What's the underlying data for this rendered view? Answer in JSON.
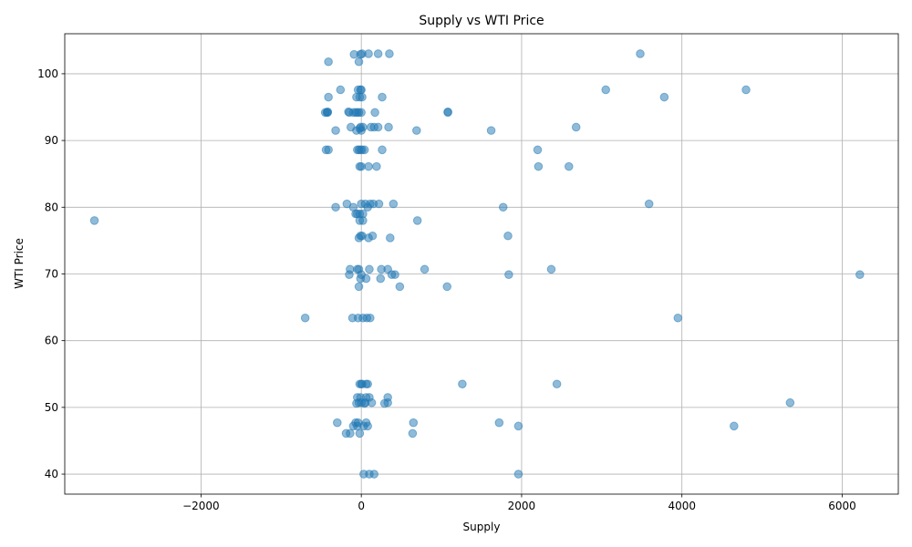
{
  "chart_data": {
    "type": "scatter",
    "title": "Supply vs WTI Price",
    "xlabel": "Supply",
    "ylabel": "WTI Price",
    "xlim": [
      -3700,
      6700
    ],
    "ylim": [
      37,
      106
    ],
    "xticks": [
      -2000,
      0,
      2000,
      4000,
      6000
    ],
    "xtick_labels": [
      "−2000",
      "0",
      "2000",
      "4000",
      "6000"
    ],
    "yticks": [
      40,
      50,
      60,
      70,
      80,
      90,
      100
    ],
    "ytick_labels": [
      "40",
      "50",
      "60",
      "70",
      "80",
      "90",
      "100"
    ],
    "grid": true,
    "legend": "none",
    "marker_color": "#1f77b4",
    "marker_alpha": 0.5,
    "points": [
      [
        -3330,
        78
      ],
      [
        -700,
        63.4
      ],
      [
        6220,
        69.9
      ],
      [
        5350,
        50.7
      ],
      [
        4650,
        47.2
      ],
      [
        4800,
        97.6
      ],
      [
        3780,
        96.5
      ],
      [
        3480,
        103
      ],
      [
        3050,
        97.6
      ],
      [
        3950,
        63.4
      ],
      [
        3590,
        80.5
      ],
      [
        2680,
        92
      ],
      [
        2590,
        86.1
      ],
      [
        2210,
        86.1
      ],
      [
        2200,
        88.6
      ],
      [
        2440,
        53.5
      ],
      [
        2370,
        70.7
      ],
      [
        1960,
        47.2
      ],
      [
        1960,
        40
      ],
      [
        1840,
        69.9
      ],
      [
        1830,
        75.7
      ],
      [
        1770,
        80
      ],
      [
        1720,
        47.7
      ],
      [
        1620,
        91.5
      ],
      [
        1080,
        94.2
      ],
      [
        1080,
        94.3
      ],
      [
        1070,
        68.1
      ],
      [
        1260,
        53.5
      ],
      [
        790,
        70.7
      ],
      [
        700,
        78
      ],
      [
        690,
        91.5
      ],
      [
        650,
        47.7
      ],
      [
        640,
        46.1
      ],
      [
        480,
        68.1
      ],
      [
        420,
        69.9
      ],
      [
        400,
        80.5
      ],
      [
        380,
        69.9
      ],
      [
        360,
        75.4
      ],
      [
        350,
        103
      ],
      [
        340,
        92
      ],
      [
        330,
        51.5
      ],
      [
        330,
        70.7
      ],
      [
        330,
        50.7
      ],
      [
        290,
        50.6
      ],
      [
        260,
        96.5
      ],
      [
        260,
        88.6
      ],
      [
        250,
        70.7
      ],
      [
        240,
        69.3
      ],
      [
        220,
        80.5
      ],
      [
        210,
        103
      ],
      [
        210,
        92
      ],
      [
        190,
        86.1
      ],
      [
        170,
        94.2
      ],
      [
        160,
        92
      ],
      [
        160,
        40
      ],
      [
        150,
        80.5
      ],
      [
        140,
        75.7
      ],
      [
        130,
        50.7
      ],
      [
        120,
        92
      ],
      [
        110,
        80.5
      ],
      [
        110,
        63.4
      ],
      [
        100,
        40
      ],
      [
        100,
        51.5
      ],
      [
        100,
        70.7
      ],
      [
        90,
        103
      ],
      [
        90,
        86.1
      ],
      [
        90,
        75.4
      ],
      [
        80,
        80
      ],
      [
        80,
        53.5
      ],
      [
        80,
        47.2
      ],
      [
        70,
        63.4
      ],
      [
        60,
        47.7
      ],
      [
        60,
        51.5
      ],
      [
        60,
        69.3
      ],
      [
        60,
        53.5
      ],
      [
        50,
        80.5
      ],
      [
        50,
        50.7
      ],
      [
        40,
        88.6
      ],
      [
        40,
        50.6
      ],
      [
        30,
        40
      ],
      [
        30,
        47.2
      ],
      [
        20,
        92
      ],
      [
        20,
        79
      ],
      [
        20,
        78
      ],
      [
        20,
        63.4
      ],
      [
        10,
        96.5
      ],
      [
        10,
        103
      ],
      [
        10,
        88.6
      ],
      [
        10,
        75.7
      ],
      [
        10,
        53.5
      ],
      [
        0,
        97.6
      ],
      [
        0,
        94.2
      ],
      [
        0,
        91.5
      ],
      [
        0,
        86.1
      ],
      [
        0,
        80.5
      ],
      [
        0,
        69.9
      ],
      [
        0,
        53.5
      ],
      [
        0,
        50.7
      ],
      [
        -10,
        102.9
      ],
      [
        -10,
        97.6
      ],
      [
        -10,
        92
      ],
      [
        -10,
        88.6
      ],
      [
        -10,
        75.7
      ],
      [
        -10,
        69.3
      ],
      [
        -10,
        51.5
      ],
      [
        -20,
        96.5
      ],
      [
        -20,
        91.8
      ],
      [
        -20,
        86.1
      ],
      [
        -20,
        79
      ],
      [
        -20,
        78
      ],
      [
        -20,
        53.5
      ],
      [
        -20,
        46.1
      ],
      [
        -30,
        94.2
      ],
      [
        -30,
        101.8
      ],
      [
        -30,
        88.6
      ],
      [
        -30,
        75.4
      ],
      [
        -30,
        70.7
      ],
      [
        -30,
        68.1
      ],
      [
        -30,
        50.7
      ],
      [
        -40,
        97.6
      ],
      [
        -40,
        63.4
      ],
      [
        -40,
        47.7
      ],
      [
        -50,
        94.2
      ],
      [
        -50,
        88.6
      ],
      [
        -50,
        79
      ],
      [
        -50,
        70.7
      ],
      [
        -50,
        51.5
      ],
      [
        -50,
        47.2
      ],
      [
        -60,
        96.5
      ],
      [
        -60,
        91.5
      ],
      [
        -60,
        50.6
      ],
      [
        -70,
        94.2
      ],
      [
        -70,
        79
      ],
      [
        -70,
        47.7
      ],
      [
        -90,
        102.9
      ],
      [
        -100,
        94.2
      ],
      [
        -100,
        80
      ],
      [
        -100,
        47.2
      ],
      [
        -110,
        63.4
      ],
      [
        -130,
        92
      ],
      [
        -140,
        70.7
      ],
      [
        -140,
        46.1
      ],
      [
        -150,
        94.2
      ],
      [
        -150,
        69.9
      ],
      [
        -160,
        94.3
      ],
      [
        -180,
        80.5
      ],
      [
        -190,
        46.1
      ],
      [
        -260,
        97.6
      ],
      [
        -300,
        47.7
      ],
      [
        -320,
        91.5
      ],
      [
        -320,
        80
      ],
      [
        -410,
        101.8
      ],
      [
        -410,
        88.6
      ],
      [
        -410,
        96.5
      ],
      [
        -420,
        94.2
      ],
      [
        -420,
        94.3
      ],
      [
        -430,
        94.2
      ],
      [
        -440,
        88.6
      ],
      [
        -450,
        94.2
      ]
    ]
  }
}
